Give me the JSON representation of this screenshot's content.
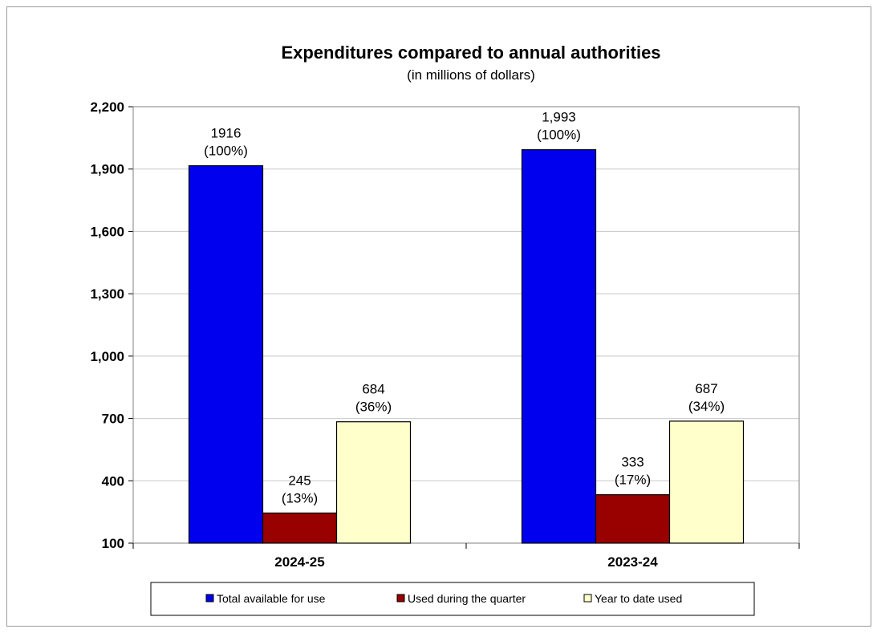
{
  "chart_data": {
    "type": "bar",
    "title": "Expenditures compared to annual authorities",
    "subtitle": "(in millions of dollars)",
    "xlabel": "",
    "ylabel": "",
    "categories": [
      "2024-25",
      "2023-24"
    ],
    "series": [
      {
        "name": "Total available for use",
        "color": "#0000ee",
        "values": [
          1916,
          1993
        ],
        "value_labels": [
          "1916",
          "1,993"
        ],
        "pct_labels": [
          "(100%)",
          "(100%)"
        ]
      },
      {
        "name": "Used during the quarter",
        "color": "#990000",
        "values": [
          245,
          333
        ],
        "value_labels": [
          "245",
          "333"
        ],
        "pct_labels": [
          "(13%)",
          "(17%)"
        ]
      },
      {
        "name": "Year to date used",
        "color": "#ffffcc",
        "values": [
          684,
          687
        ],
        "value_labels": [
          "684",
          "687"
        ],
        "pct_labels": [
          "(36%)",
          "(34%)"
        ]
      }
    ],
    "ylim": [
      100,
      2200
    ],
    "yticks": [
      100,
      400,
      700,
      1000,
      1300,
      1600,
      1900,
      2200
    ],
    "ytick_labels": [
      "100",
      "400",
      "700",
      "1,000",
      "1,300",
      "1,600",
      "1,900",
      "2,200"
    ],
    "grid": true,
    "legend": "bottom"
  }
}
